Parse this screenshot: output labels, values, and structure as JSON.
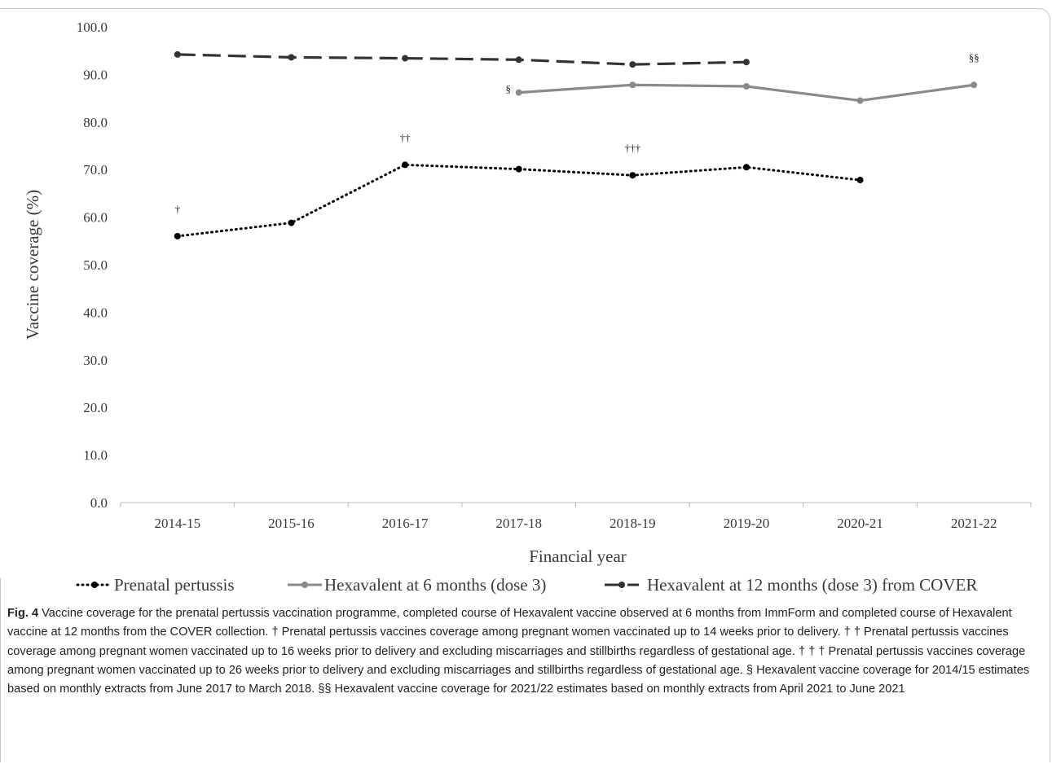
{
  "figure": {
    "label": "Fig. 4",
    "caption": "Vaccine coverage for the prenatal pertussis vaccination programme, completed course of Hexavalent vaccine observed at 6 months from ImmForm and completed course of Hexavalent vaccine at 12 months from the COVER collection. † Prenatal pertussis vaccines coverage among pregnant women vaccinated up to 14 weeks prior to delivery. † † Prenatal pertussis vaccines coverage among pregnant women vaccinated up to 16 weeks prior to delivery and excluding miscarriages and stillbirths regardless of gestational age. † † † Prenatal pertussis vaccines coverage among pregnant women vaccinated up to 26 weeks prior to delivery and excluding miscarriages and stillbirths regardless of gestational age. § Hexavalent vaccine coverage for 2014/15 estimates based on monthly extracts from June 2017 to March 2018. §§ Hexavalent vaccine coverage for 2021/22 estimates based on monthly extracts from April 2021 to June 2021"
  },
  "chart_data": {
    "type": "line",
    "xlabel": "Financial year",
    "ylabel": "Vaccine coverage (%)",
    "ylim": [
      0,
      100
    ],
    "y_ticks": [
      "0.0",
      "10.0",
      "20.0",
      "30.0",
      "40.0",
      "50.0",
      "60.0",
      "70.0",
      "80.0",
      "90.0",
      "100.0"
    ],
    "grid": false,
    "legend_position": "bottom",
    "categories": [
      "2014-15",
      "2015-16",
      "2016-17",
      "2017-18",
      "2018-19",
      "2019-20",
      "2020-21",
      "2021-22"
    ],
    "series": [
      {
        "name": "Prenatal pertussis",
        "style": "dotted",
        "color": "#000000",
        "values": [
          56.0,
          58.8,
          71.0,
          70.1,
          68.8,
          70.5,
          67.8,
          null
        ]
      },
      {
        "name": "Hexavalent at 6 months (dose 3)",
        "style": "solid",
        "color": "#8a8a8a",
        "values": [
          null,
          null,
          null,
          86.2,
          87.8,
          87.5,
          84.5,
          87.8
        ]
      },
      {
        "name": "Hexavalent at 12 months (dose 3) from COVER",
        "style": "dashed",
        "color": "#333333",
        "values": [
          94.2,
          93.6,
          93.4,
          93.1,
          92.1,
          92.6,
          null,
          null
        ]
      }
    ],
    "annotations": [
      {
        "text": "†",
        "series": 0,
        "index": 0
      },
      {
        "text": "††",
        "series": 0,
        "index": 2
      },
      {
        "text": "†††",
        "series": 0,
        "index": 4
      },
      {
        "text": "§",
        "series": 1,
        "index": 3
      },
      {
        "text": "§§",
        "series": 1,
        "index": 7
      }
    ]
  }
}
